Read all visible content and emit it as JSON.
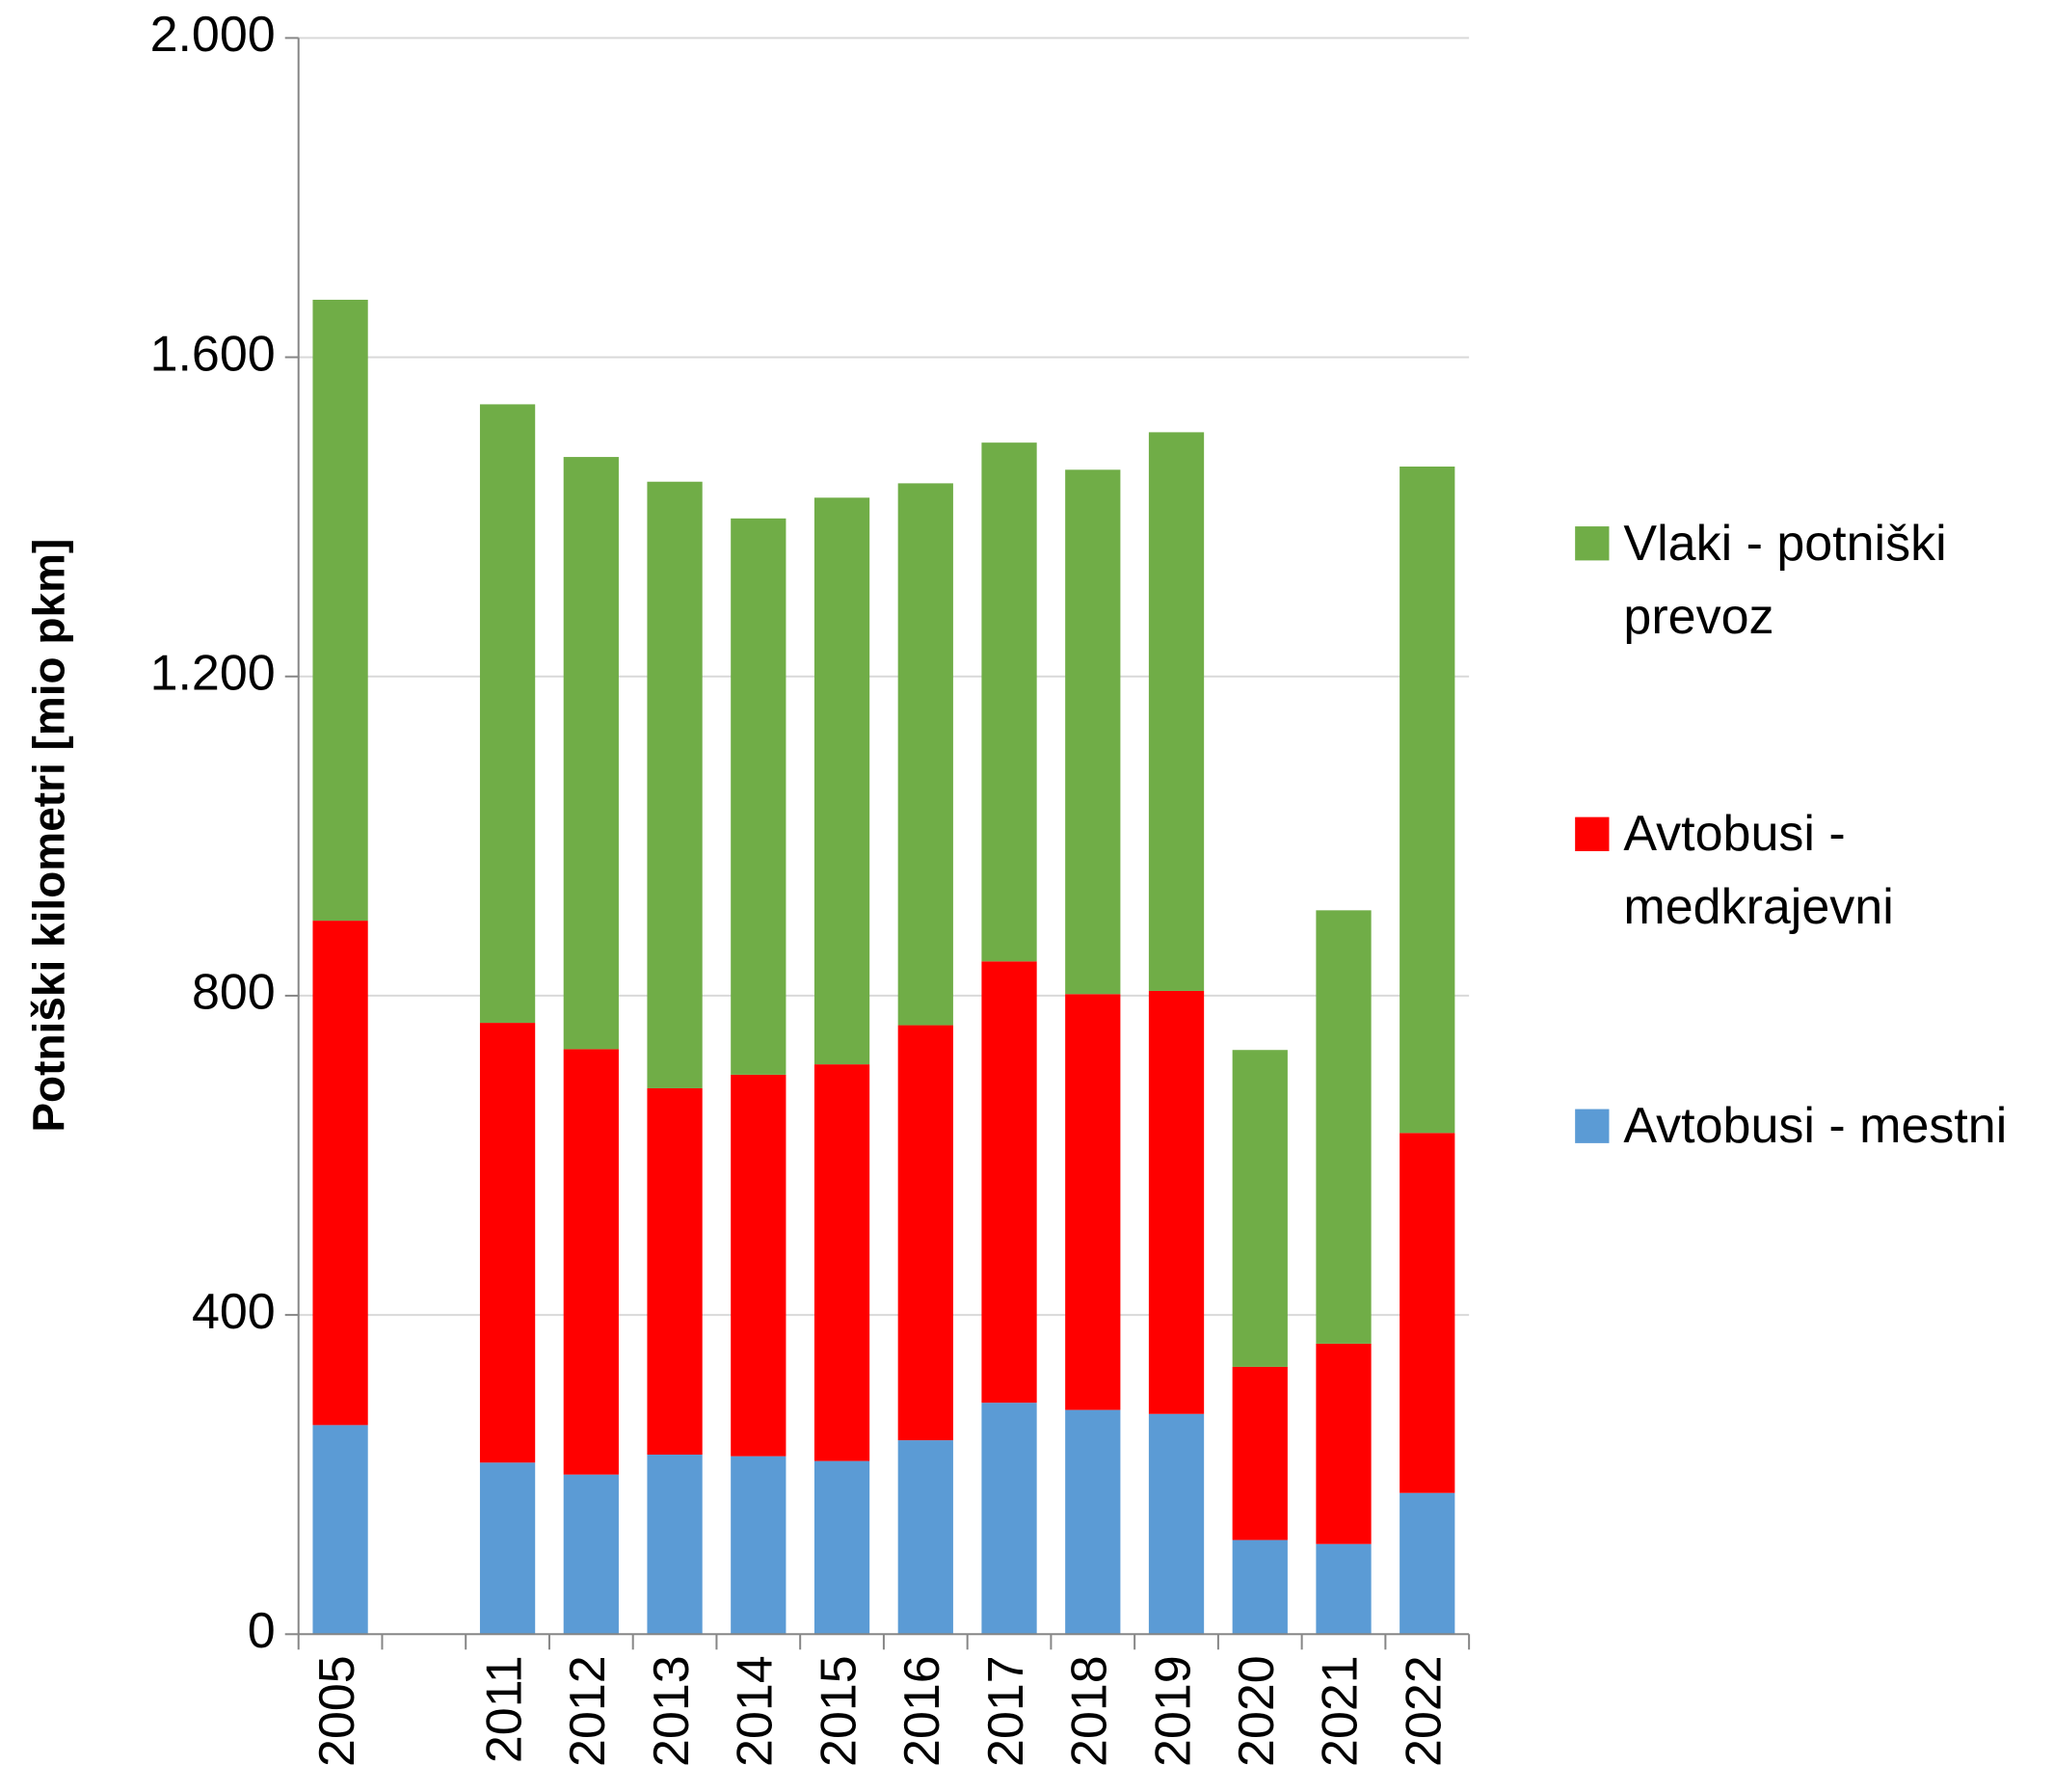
{
  "chart_data": {
    "type": "stacked_bar",
    "y_label": "Potniški kilometri [mio pkm]",
    "categories": [
      "2005",
      null,
      "2011",
      "2012",
      "2013",
      "2014",
      "2015",
      "2016",
      "2017",
      "2018",
      "2019",
      "2020",
      "2021",
      "2022"
    ],
    "series": [
      {
        "name": "Avtobusi - mestni",
        "color": "#5b9bd5",
        "values": [
          262,
          null,
          215,
          200,
          225,
          223,
          217,
          243,
          290,
          281,
          276,
          118,
          113,
          177
        ]
      },
      {
        "name": "Avtobusi - medkrajevni",
        "color": "#ff0000",
        "values": [
          632,
          null,
          551,
          533,
          459,
          478,
          497,
          520,
          553,
          521,
          530,
          217,
          251,
          451
        ]
      },
      {
        "name": "Vlaki - potniški prevoz",
        "color": "#70ad47",
        "values": [
          778,
          null,
          775,
          742,
          760,
          697,
          710,
          679,
          650,
          657,
          700,
          397,
          543,
          835
        ]
      }
    ],
    "ylim": [
      0,
      2000
    ],
    "yticks": [
      0,
      400,
      800,
      {
        "value": 1200,
        "label": "1.200"
      },
      {
        "value": 1600,
        "label": "1.600"
      },
      {
        "value": 2000,
        "label": "2.000"
      }
    ],
    "grid": true,
    "legend": "right"
  }
}
